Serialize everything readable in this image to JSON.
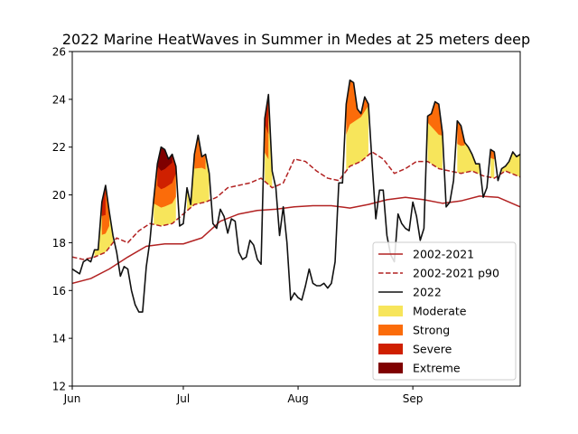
{
  "chart_data": {
    "type": "line",
    "title": "2022 Marine HeatWaves in Summer in Medes at 25 meters deep",
    "xlabel": "",
    "ylabel": "",
    "ylim": [
      12,
      26
    ],
    "xlim": [
      0,
      121
    ],
    "grid": false,
    "legend_position": "lower-right",
    "x_ticks": [
      {
        "label": "Jun",
        "day": 0
      },
      {
        "label": "Jul",
        "day": 30
      },
      {
        "label": "Aug",
        "day": 61
      },
      {
        "label": "Sep",
        "day": 92
      }
    ],
    "y_ticks": [
      12,
      14,
      16,
      18,
      20,
      22,
      24,
      26
    ],
    "series": [
      {
        "name": "2002-2021",
        "style": "solid",
        "color": "#b22222",
        "x": [
          0,
          5,
          10,
          15,
          20,
          25,
          30,
          35,
          40,
          45,
          50,
          55,
          60,
          65,
          70,
          75,
          80,
          85,
          90,
          95,
          100,
          105,
          110,
          115,
          121
        ],
        "values": [
          16.3,
          16.5,
          16.9,
          17.4,
          17.85,
          17.95,
          17.95,
          18.2,
          18.9,
          19.2,
          19.35,
          19.4,
          19.5,
          19.55,
          19.55,
          19.45,
          19.6,
          19.8,
          19.9,
          19.8,
          19.65,
          19.75,
          19.95,
          19.9,
          19.5
        ]
      },
      {
        "name": "2002-2021 p90",
        "style": "dashed",
        "color": "#b22222",
        "x": [
          0,
          3,
          6,
          9,
          12,
          15,
          18,
          21,
          24,
          27,
          30,
          33,
          36,
          39,
          42,
          45,
          48,
          51,
          54,
          57,
          60,
          63,
          66,
          69,
          72,
          75,
          78,
          81,
          84,
          87,
          90,
          93,
          96,
          99,
          102,
          105,
          108,
          111,
          114,
          117,
          121
        ],
        "values": [
          17.4,
          17.3,
          17.4,
          17.6,
          18.2,
          18.0,
          18.5,
          18.8,
          18.7,
          18.8,
          19.2,
          19.6,
          19.7,
          19.9,
          20.3,
          20.4,
          20.5,
          20.7,
          20.3,
          20.5,
          21.5,
          21.4,
          21.0,
          20.7,
          20.6,
          21.2,
          21.4,
          21.8,
          21.5,
          20.9,
          21.1,
          21.4,
          21.4,
          21.1,
          21.0,
          20.9,
          21.0,
          20.8,
          20.7,
          21.0,
          20.75
        ]
      },
      {
        "name": "2022",
        "style": "solid",
        "color": "#111111",
        "x": [
          0,
          1,
          2,
          3,
          4,
          5,
          6,
          7,
          8,
          9,
          10,
          11,
          12,
          13,
          14,
          15,
          16,
          17,
          18,
          19,
          20,
          21,
          22,
          23,
          24,
          25,
          26,
          27,
          28,
          29,
          30,
          31,
          32,
          33,
          34,
          35,
          36,
          37,
          38,
          39,
          40,
          41,
          42,
          43,
          44,
          45,
          46,
          47,
          48,
          49,
          50,
          51,
          52,
          53,
          54,
          55,
          56,
          57,
          58,
          59,
          60,
          61,
          62,
          63,
          64,
          65,
          66,
          67,
          68,
          69,
          70,
          71,
          72,
          73,
          74,
          75,
          76,
          77,
          78,
          79,
          80,
          81,
          82,
          83,
          84,
          85,
          86,
          87,
          88,
          89,
          90,
          91,
          92,
          93,
          94,
          95,
          96,
          97,
          98,
          99,
          100,
          101,
          102,
          103,
          104,
          105,
          106,
          107,
          108,
          109,
          110,
          111,
          112,
          113,
          114,
          115,
          116,
          117,
          118,
          119,
          120,
          121
        ],
        "values": [
          16.9,
          16.8,
          16.7,
          17.2,
          17.3,
          17.2,
          17.7,
          17.7,
          19.7,
          20.4,
          19.3,
          18.3,
          17.6,
          16.6,
          17.0,
          16.9,
          16.0,
          15.4,
          15.1,
          15.1,
          17.0,
          18.1,
          19.8,
          21.3,
          22.0,
          21.9,
          21.5,
          21.7,
          21.2,
          18.7,
          18.8,
          20.3,
          19.6,
          21.7,
          22.5,
          21.6,
          21.7,
          20.9,
          18.8,
          18.6,
          19.4,
          19.1,
          18.4,
          19.0,
          18.9,
          17.6,
          17.3,
          17.4,
          18.1,
          17.9,
          17.3,
          17.1,
          23.2,
          24.2,
          21.0,
          20.3,
          18.3,
          19.5,
          18.0,
          15.6,
          15.9,
          15.7,
          15.6,
          16.2,
          16.9,
          16.3,
          16.2,
          16.2,
          16.3,
          16.1,
          16.3,
          17.2,
          20.5,
          20.5,
          23.8,
          24.8,
          24.7,
          23.6,
          23.4,
          24.1,
          23.8,
          21.3,
          19.0,
          20.2,
          20.2,
          18.3,
          17.5,
          17.2,
          19.2,
          18.8,
          18.6,
          18.5,
          19.7,
          19.1,
          18.1,
          18.6,
          23.3,
          23.4,
          23.9,
          23.8,
          22.6,
          19.5,
          19.7,
          20.6,
          23.1,
          22.9,
          22.2,
          22.0,
          21.7,
          21.3,
          21.3,
          19.9,
          20.3,
          21.9,
          21.8,
          20.6,
          21.1,
          21.2,
          21.4,
          21.8,
          21.6,
          21.7
        ]
      }
    ],
    "heatwave_categories": [
      {
        "name": "Moderate",
        "color": "#f7e55b"
      },
      {
        "name": "Strong",
        "color": "#fb6c0a"
      },
      {
        "name": "Severe",
        "color": "#cf2000"
      },
      {
        "name": "Extreme",
        "color": "#7f0000"
      }
    ],
    "legend": [
      {
        "label": "2002-2021",
        "kind": "line",
        "color": "#b22222",
        "style": "solid"
      },
      {
        "label": "2002-2021 p90",
        "kind": "line",
        "color": "#b22222",
        "style": "dashed"
      },
      {
        "label": "2022",
        "kind": "line",
        "color": "#111111",
        "style": "solid"
      },
      {
        "label": "Moderate",
        "kind": "patch",
        "color": "#f7e55b"
      },
      {
        "label": "Strong",
        "kind": "patch",
        "color": "#fb6c0a"
      },
      {
        "label": "Severe",
        "kind": "patch",
        "color": "#cf2000"
      },
      {
        "label": "Extreme",
        "kind": "patch",
        "color": "#7f0000"
      }
    ]
  }
}
